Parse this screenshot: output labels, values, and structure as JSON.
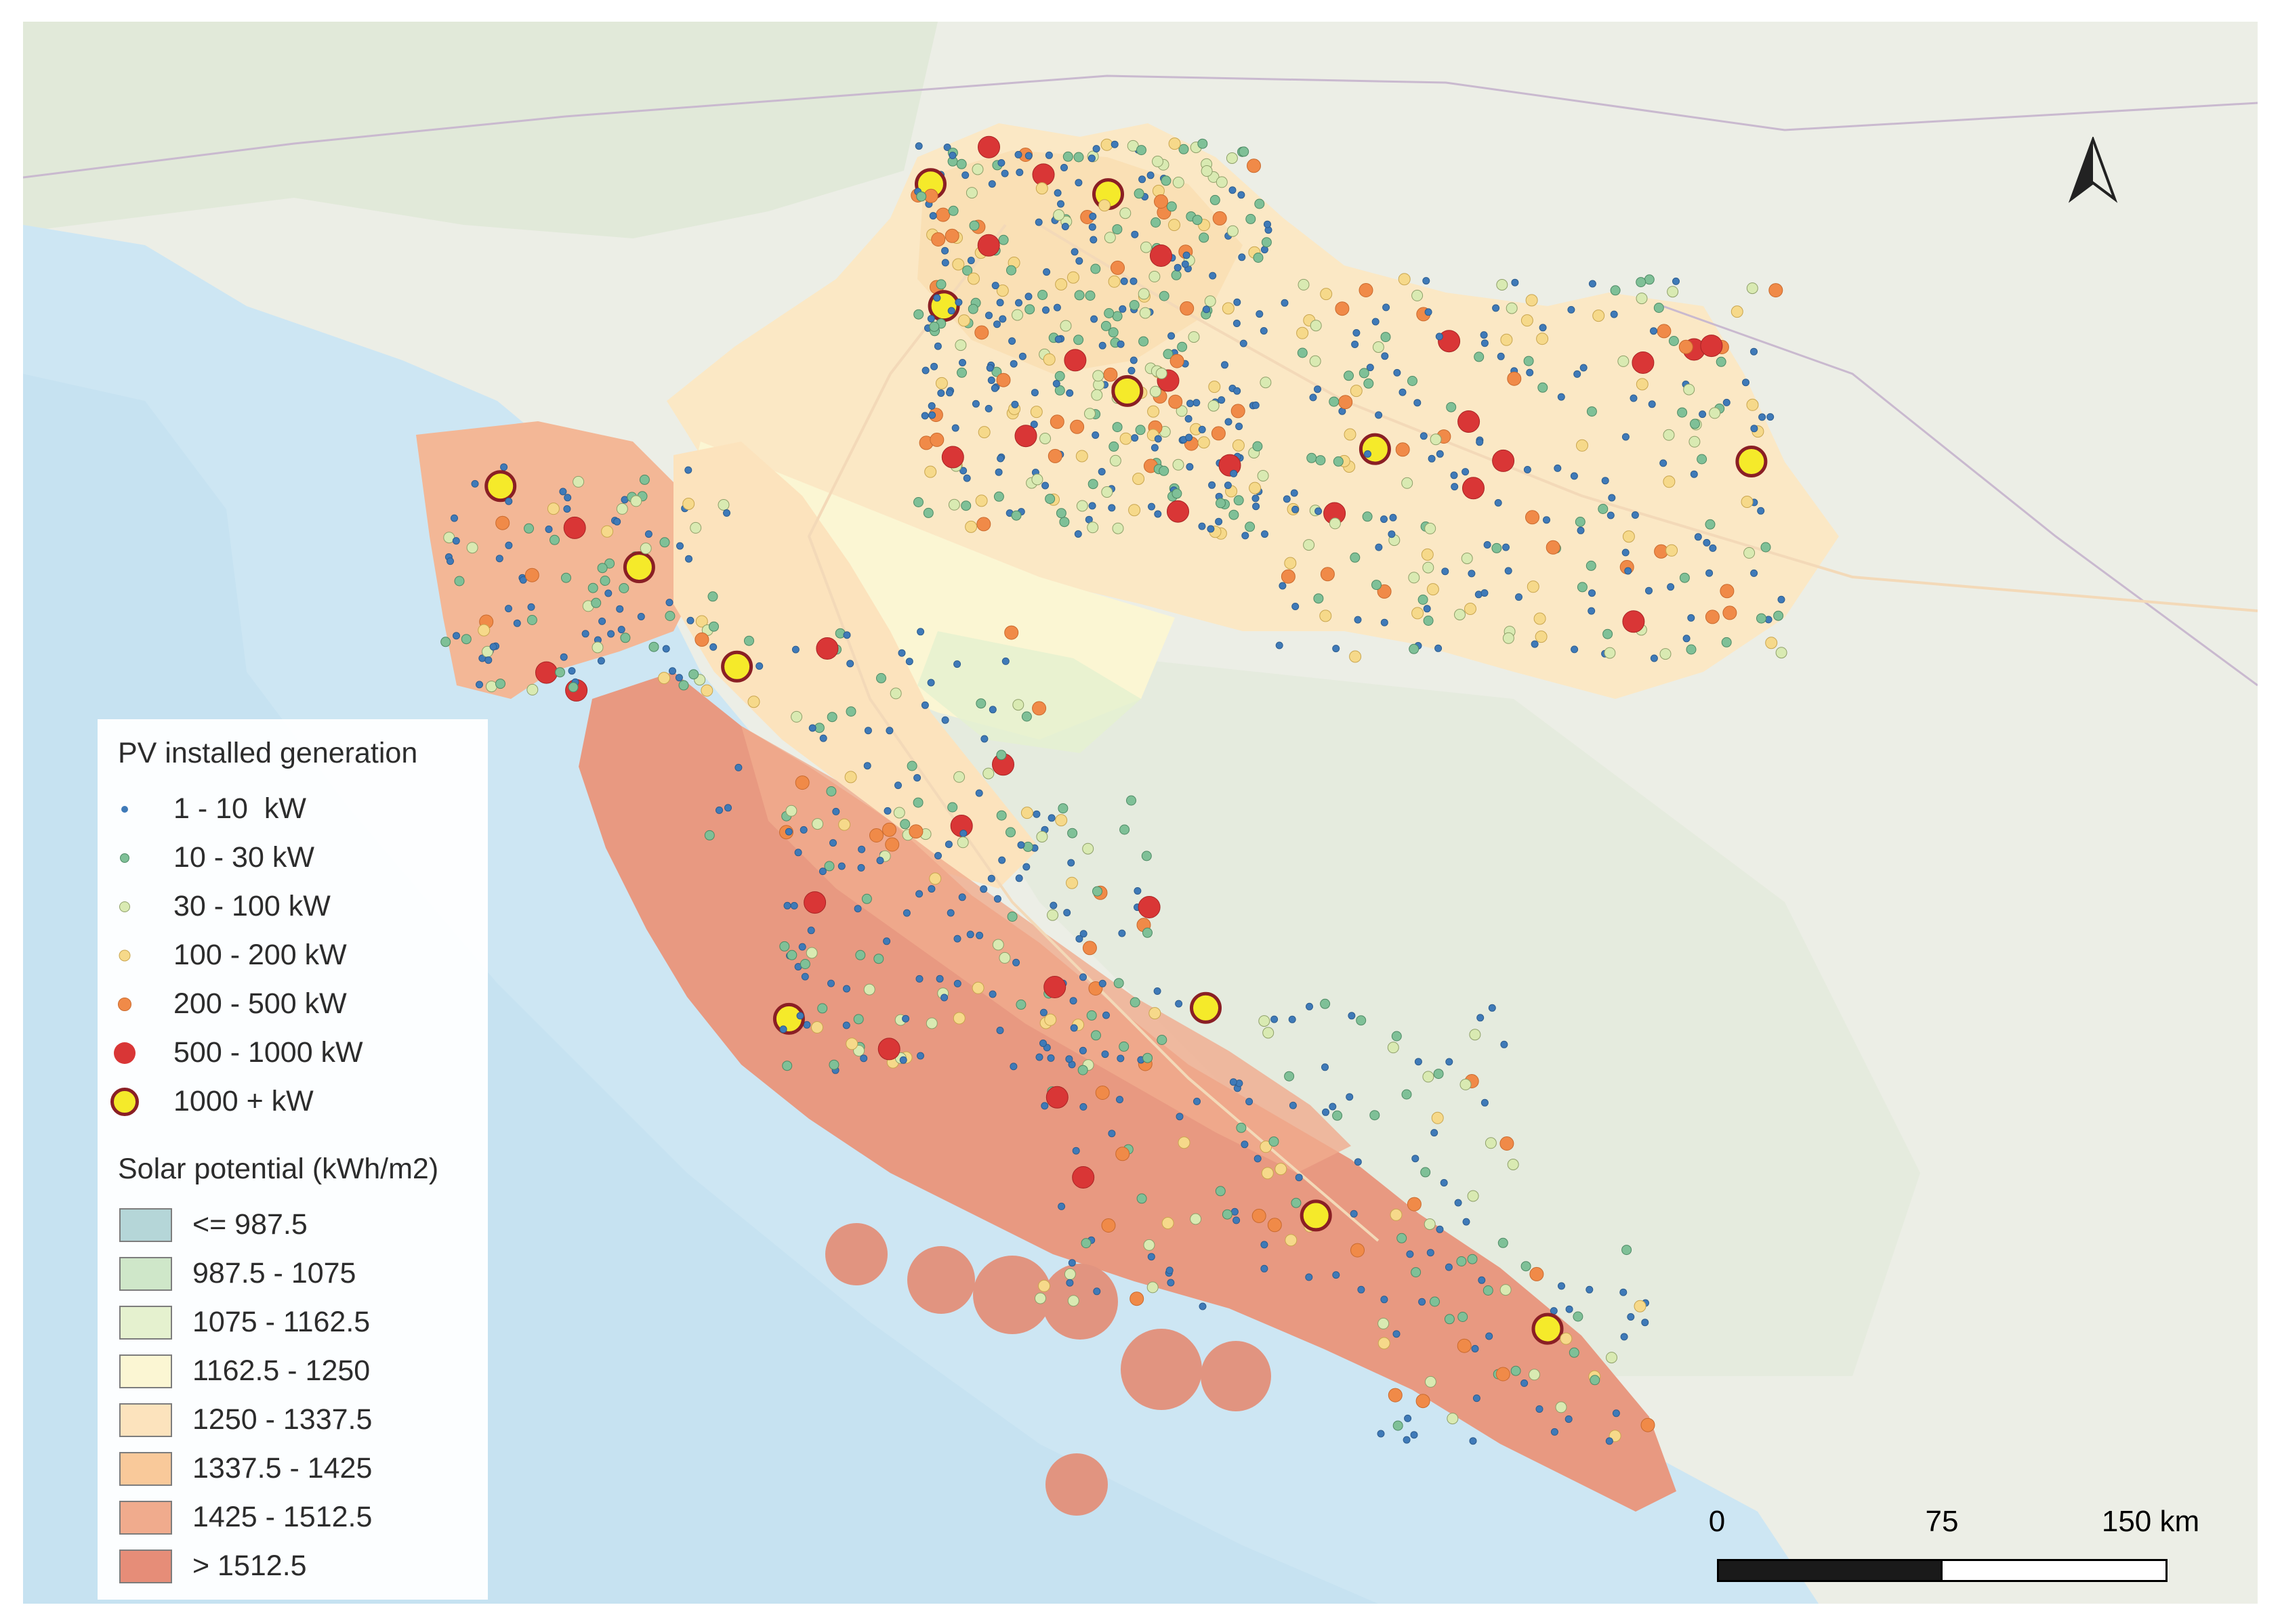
{
  "legend": {
    "pv_title": "PV installed generation",
    "pv_classes": [
      {
        "label": "1 - 10  kW",
        "fill": "#3f7ab8",
        "stroke": "#2d5d8f",
        "size": 10,
        "stroke_w": 0
      },
      {
        "label": "10 - 30 kW",
        "fill": "#7fc097",
        "stroke": "#4e8a65",
        "size": 14,
        "stroke_w": 1
      },
      {
        "label": "30 - 100 kW",
        "fill": "#d9eab2",
        "stroke": "#8fa06a",
        "size": 16,
        "stroke_w": 1
      },
      {
        "label": "100 - 200 kW",
        "fill": "#f6d98a",
        "stroke": "#c9a650",
        "size": 17,
        "stroke_w": 1
      },
      {
        "label": "200 - 500 kW",
        "fill": "#f08a48",
        "stroke": "#c96a2e",
        "size": 20,
        "stroke_w": 1
      },
      {
        "label": "500 - 1000 kW",
        "fill": "#d93636",
        "stroke": "#a82424",
        "size": 32,
        "stroke_w": 0
      },
      {
        "label": "1000 + kW",
        "fill": "#f5ea2a",
        "stroke": "#8a1f25",
        "size": 42,
        "stroke_w": 5
      }
    ],
    "solar_title": "Solar potential (kWh/m2)",
    "solar_classes": [
      {
        "label": "<= 987.5",
        "color": "#b5d6d8"
      },
      {
        "label": "987.5 - 1075",
        "color": "#cfe7c9"
      },
      {
        "label": "1075 - 1162.5",
        "color": "#e5f1cf"
      },
      {
        "label": "1162.5 - 1250",
        "color": "#fbf6d3"
      },
      {
        "label": "1250 - 1337.5",
        "color": "#fce3bd"
      },
      {
        "label": "1337.5 - 1425",
        "color": "#f9c99a"
      },
      {
        "label": "1425 - 1512.5",
        "color": "#f0ab8d"
      },
      {
        "label": "> 1512.5",
        "color": "#e68d78"
      }
    ]
  },
  "scalebar": {
    "labels": [
      "0",
      "75",
      "150 km"
    ]
  },
  "basemap": {
    "sea": "#cde6f3",
    "land": "#eceee6",
    "terrain": "#dfe7d6"
  }
}
